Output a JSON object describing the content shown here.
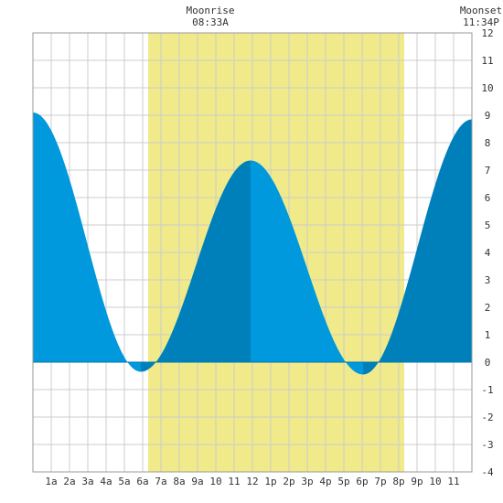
{
  "header": {
    "moonrise_label": "Moonrise",
    "moonrise_time": "08:33A",
    "moonset_label": "Moonset",
    "moonset_time": "11:34P"
  },
  "chart_data": {
    "type": "area",
    "title": "",
    "xlabel": "",
    "ylabel": "",
    "xlim": [
      0,
      24
    ],
    "ylim": [
      -4,
      12
    ],
    "x_ticks": [
      {
        "x": 1,
        "label": "1a"
      },
      {
        "x": 2,
        "label": "2a"
      },
      {
        "x": 3,
        "label": "3a"
      },
      {
        "x": 4,
        "label": "4a"
      },
      {
        "x": 5,
        "label": "5a"
      },
      {
        "x": 6,
        "label": "6a"
      },
      {
        "x": 7,
        "label": "7a"
      },
      {
        "x": 8,
        "label": "8a"
      },
      {
        "x": 9,
        "label": "9a"
      },
      {
        "x": 10,
        "label": "10"
      },
      {
        "x": 11,
        "label": "11"
      },
      {
        "x": 12,
        "label": "12"
      },
      {
        "x": 13,
        "label": "1p"
      },
      {
        "x": 14,
        "label": "2p"
      },
      {
        "x": 15,
        "label": "3p"
      },
      {
        "x": 16,
        "label": "4p"
      },
      {
        "x": 17,
        "label": "5p"
      },
      {
        "x": 18,
        "label": "6p"
      },
      {
        "x": 19,
        "label": "7p"
      },
      {
        "x": 20,
        "label": "8p"
      },
      {
        "x": 21,
        "label": "9p"
      },
      {
        "x": 22,
        "label": "10"
      },
      {
        "x": 23,
        "label": "11"
      }
    ],
    "y_ticks": [
      12,
      11,
      10,
      9,
      8,
      7,
      6,
      5,
      4,
      3,
      2,
      1,
      0,
      -1,
      -2,
      -3,
      -4
    ],
    "grid": true,
    "daylight": {
      "start": 6.3,
      "end": 20.3
    },
    "tide_extremes": [
      {
        "x": 0.0,
        "y": 9.1
      },
      {
        "x": 5.9,
        "y": -0.35
      },
      {
        "x": 11.9,
        "y": 7.35
      },
      {
        "x": 18.05,
        "y": -0.45
      },
      {
        "x": 24.0,
        "y": 8.85
      }
    ],
    "colors": {
      "daylight": "#f0ea8a",
      "ebb_fill": "#0099dd",
      "flood_fill": "#0080bb",
      "grid": "#cccccc",
      "zero_line": "#0077aa"
    }
  }
}
